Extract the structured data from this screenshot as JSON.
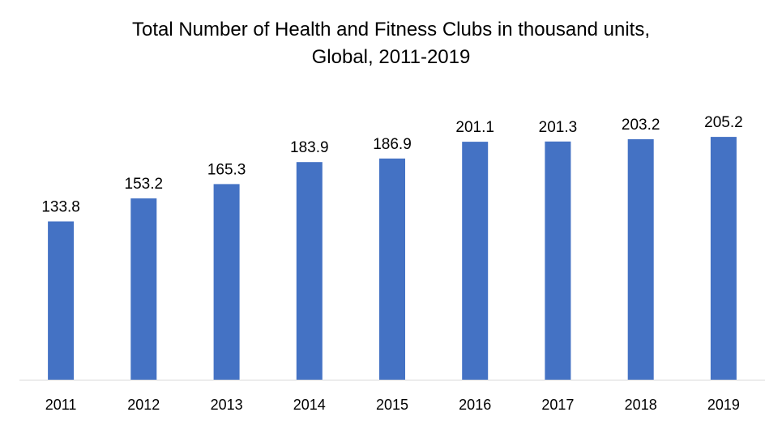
{
  "chart_data": {
    "type": "bar",
    "title_line1": "Total Number of Health and Fitness Clubs in thousand units,",
    "title_line2": "Global, 2011-2019",
    "categories": [
      "2011",
      "2012",
      "2013",
      "2014",
      "2015",
      "2016",
      "2017",
      "2018",
      "2019"
    ],
    "series": [
      {
        "values": [
          133.8,
          153.2,
          165.3,
          183.9,
          186.9,
          201.1,
          201.3,
          203.2,
          205.2
        ]
      }
    ],
    "data_labels": [
      "133.8",
      "153.2",
      "165.3",
      "183.9",
      "186.9",
      "201.1",
      "201.3",
      "203.2",
      "205.2"
    ],
    "ylim": [
      0,
      230
    ],
    "grid": false,
    "legend": "none",
    "bar_color": "#4472C4",
    "axis_color": "#D9D9D9"
  }
}
